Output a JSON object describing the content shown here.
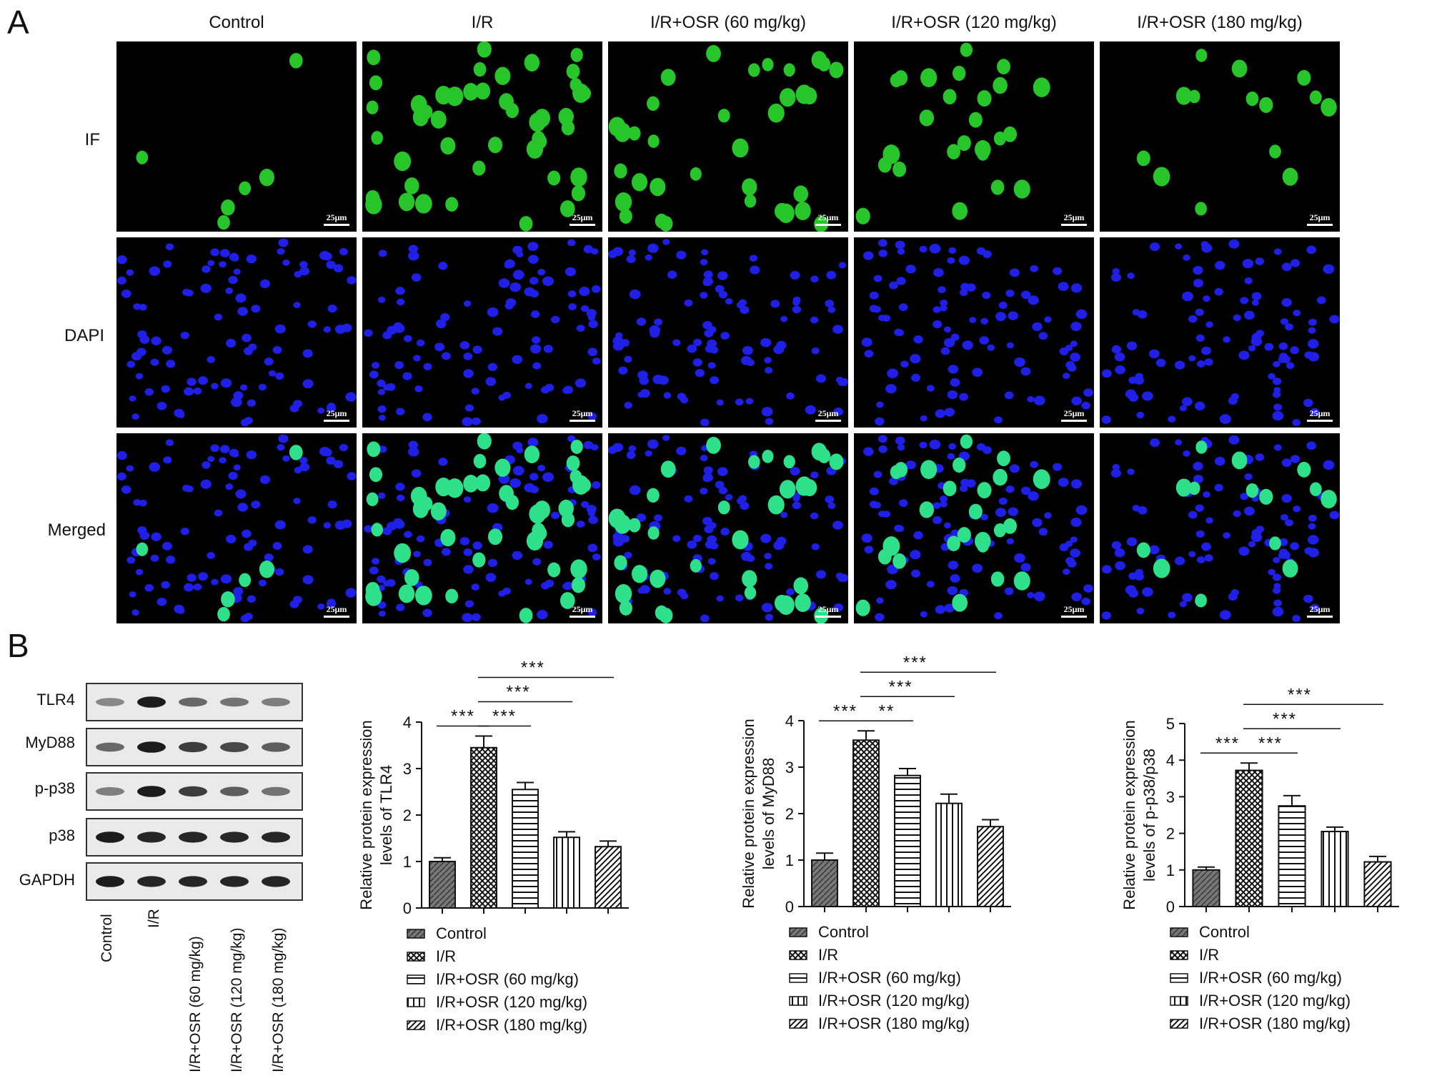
{
  "panel_a": {
    "letter": "A",
    "columns": [
      "Control",
      "I/R",
      "I/R+OSR (60 mg/kg)",
      "I/R+OSR (120 mg/kg)",
      "I/R+OSR (180 mg/kg)"
    ],
    "rows": [
      "IF",
      "DAPI",
      "Merged"
    ],
    "scale_bar": "25μm",
    "green_density": [
      6,
      45,
      34,
      25,
      14
    ]
  },
  "panel_b": {
    "letter": "B",
    "blot_rows": [
      "TLR4",
      "MyD88",
      "p-p38",
      "p38",
      "GAPDH"
    ],
    "blot_columns": [
      "Control",
      "I/R",
      "I/R+OSR (60 mg/kg)",
      "I/R+OSR (120 mg/kg)",
      "I/R+OSR (180 mg/kg)"
    ]
  },
  "chart_data": [
    {
      "type": "bar",
      "categories": [
        "Control",
        "I/R",
        "I/R+OSR (60 mg/kg)",
        "I/R+OSR (120 mg/kg)",
        "I/R+OSR (180 mg/kg)"
      ],
      "values": [
        1.0,
        3.45,
        2.55,
        1.52,
        1.32
      ],
      "errors": [
        0.08,
        0.25,
        0.15,
        0.12,
        0.12
      ],
      "ylabel_lines": [
        "Relative protein expression",
        "levels of TLR4"
      ],
      "ylim": [
        0,
        4
      ],
      "yticks": [
        "0",
        "1",
        "2",
        "3",
        "4"
      ],
      "legend": [
        "Control",
        "I/R",
        "I/R+OSR (60 mg/kg)",
        "I/R+OSR (120 mg/kg)",
        "I/R+OSR (180 mg/kg)"
      ],
      "significance": [
        {
          "from": 0,
          "to": 1,
          "label": "***",
          "level": 1
        },
        {
          "from": 1,
          "to": 2,
          "label": "***",
          "level": 1
        },
        {
          "from": 1,
          "to": 3,
          "label": "***",
          "level": 2
        },
        {
          "from": 1,
          "to": 4,
          "label": "***",
          "level": 3
        }
      ]
    },
    {
      "type": "bar",
      "categories": [
        "Control",
        "I/R",
        "I/R+OSR (60 mg/kg)",
        "I/R+OSR (120 mg/kg)",
        "I/R+OSR (180 mg/kg)"
      ],
      "values": [
        1.0,
        3.58,
        2.82,
        2.22,
        1.72
      ],
      "errors": [
        0.15,
        0.2,
        0.15,
        0.2,
        0.15
      ],
      "ylabel_lines": [
        "Relative protein expression",
        "levels of MyD88"
      ],
      "ylim": [
        0,
        4
      ],
      "yticks": [
        "0",
        "1",
        "2",
        "3",
        "4"
      ],
      "legend": [
        "Control",
        "I/R",
        "I/R+OSR (60 mg/kg)",
        "I/R+OSR (120 mg/kg)",
        "I/R+OSR (180 mg/kg)"
      ],
      "significance": [
        {
          "from": 0,
          "to": 1,
          "label": "***",
          "level": 1
        },
        {
          "from": 1,
          "to": 2,
          "label": "**",
          "level": 1
        },
        {
          "from": 1,
          "to": 3,
          "label": "***",
          "level": 2
        },
        {
          "from": 1,
          "to": 4,
          "label": "***",
          "level": 3
        }
      ]
    },
    {
      "type": "bar",
      "categories": [
        "Control",
        "I/R",
        "I/R+OSR (60 mg/kg)",
        "I/R+OSR (120 mg/kg)",
        "I/R+OSR (180 mg/kg)"
      ],
      "values": [
        1.0,
        3.72,
        2.75,
        2.05,
        1.22
      ],
      "errors": [
        0.08,
        0.2,
        0.28,
        0.12,
        0.15
      ],
      "ylabel_lines": [
        "Relative protein expression",
        "levels of p-p38/p38"
      ],
      "ylim": [
        0,
        5
      ],
      "yticks": [
        "0",
        "1",
        "2",
        "3",
        "4",
        "5"
      ],
      "legend": [
        "Control",
        "I/R",
        "I/R+OSR (60 mg/kg)",
        "I/R+OSR (120 mg/kg)",
        "I/R+OSR (180 mg/kg)"
      ],
      "significance": [
        {
          "from": 0,
          "to": 1,
          "label": "***",
          "level": 1
        },
        {
          "from": 1,
          "to": 2,
          "label": "***",
          "level": 1
        },
        {
          "from": 1,
          "to": 3,
          "label": "***",
          "level": 2
        },
        {
          "from": 1,
          "to": 4,
          "label": "***",
          "level": 3
        }
      ]
    }
  ]
}
